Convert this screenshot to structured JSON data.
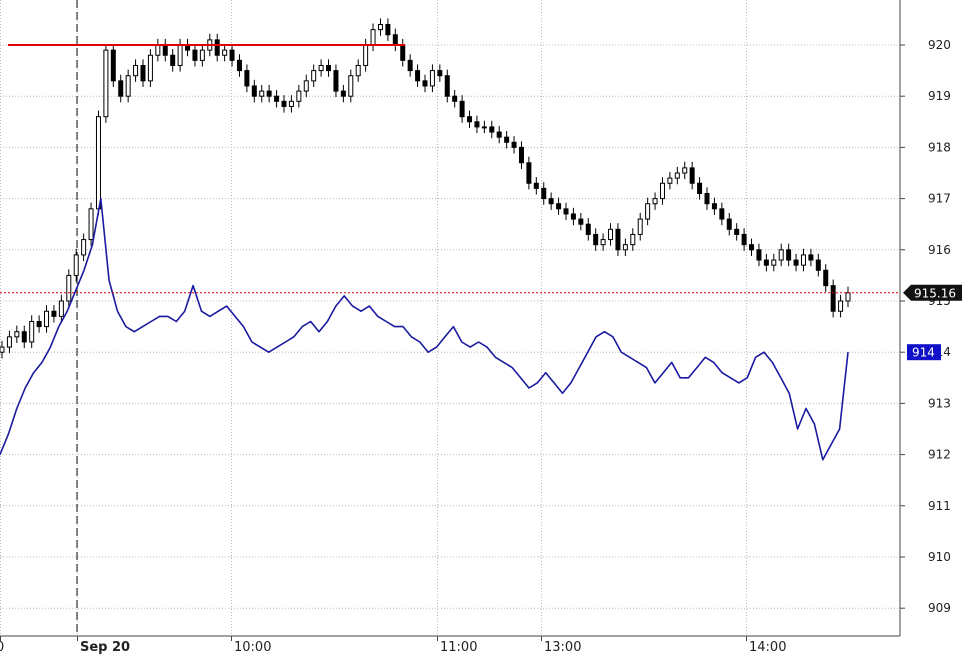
{
  "chart_data": {
    "type": "line",
    "y_axis": {
      "min": 908.6,
      "max": 920.8,
      "ticks": [
        909,
        910,
        911,
        912,
        913,
        914,
        915,
        916,
        917,
        918,
        919,
        920
      ],
      "tick_labels": [
        "909",
        "910",
        "911",
        "912",
        "913",
        "914",
        "915",
        "916",
        "917",
        "918",
        "919",
        "920"
      ],
      "grid": true
    },
    "x_axis": {
      "tick_labels": [
        "0",
        "Sep 20",
        "10:00",
        "11:00",
        "13:00",
        "14:00"
      ],
      "bold_labels": [
        "Sep 20"
      ],
      "session_break_label": "Sep 20",
      "grid": true
    },
    "series": [
      {
        "style": "candlestick",
        "color": "#000000",
        "values": [
          914.1,
          914.3,
          914.4,
          914.2,
          914.6,
          914.5,
          914.8,
          914.7,
          915.0,
          915.5,
          915.9,
          916.2,
          916.8,
          918.6,
          919.9,
          919.3,
          919.0,
          919.4,
          919.6,
          919.3,
          919.8,
          920.0,
          919.8,
          919.6,
          920.0,
          919.9,
          919.7,
          919.9,
          920.1,
          919.8,
          919.9,
          919.7,
          919.5,
          919.2,
          919.0,
          919.1,
          919.0,
          918.9,
          918.8,
          918.9,
          919.1,
          919.3,
          919.5,
          919.6,
          919.5,
          919.1,
          919.0,
          919.4,
          919.6,
          920.0,
          920.3,
          920.4,
          920.2,
          920.0,
          919.7,
          919.5,
          919.3,
          919.2,
          919.5,
          919.4,
          919.0,
          918.9,
          918.6,
          918.5,
          918.4,
          918.4,
          918.3,
          918.2,
          918.1,
          918.0,
          917.7,
          917.3,
          917.2,
          917.0,
          916.9,
          916.8,
          916.7,
          916.6,
          916.5,
          916.3,
          916.1,
          916.2,
          916.4,
          916.0,
          916.1,
          916.3,
          916.6,
          916.9,
          917.0,
          917.3,
          917.4,
          917.5,
          917.6,
          917.3,
          917.1,
          916.9,
          916.8,
          916.6,
          916.4,
          916.3,
          916.1,
          916.0,
          915.8,
          915.7,
          915.8,
          916.0,
          915.8,
          915.7,
          915.9,
          915.8,
          915.6,
          915.3,
          914.8,
          915.0,
          915.16
        ]
      },
      {
        "style": "line",
        "color": "#1a1aa0",
        "values": [
          912.0,
          912.4,
          912.9,
          913.3,
          913.6,
          913.8,
          914.1,
          914.5,
          914.8,
          915.2,
          915.6,
          916.1,
          917.0,
          915.4,
          914.8,
          914.5,
          914.4,
          914.5,
          914.6,
          914.7,
          914.7,
          914.6,
          914.8,
          915.3,
          914.8,
          914.7,
          914.8,
          914.9,
          914.7,
          914.5,
          914.2,
          914.1,
          914.0,
          914.1,
          914.2,
          914.3,
          914.5,
          914.6,
          914.4,
          914.6,
          914.9,
          915.1,
          914.9,
          914.8,
          914.9,
          914.7,
          914.6,
          914.5,
          914.5,
          914.3,
          914.2,
          914.0,
          914.1,
          914.3,
          914.5,
          914.2,
          914.1,
          914.2,
          914.1,
          913.9,
          913.8,
          913.7,
          913.5,
          913.3,
          913.4,
          913.6,
          913.4,
          913.2,
          913.4,
          913.7,
          914.0,
          914.3,
          914.4,
          914.3,
          914.0,
          913.9,
          913.8,
          913.7,
          913.4,
          913.6,
          913.8,
          913.5,
          913.5,
          913.7,
          913.9,
          913.8,
          913.6,
          913.5,
          913.4,
          913.5,
          913.9,
          914.0,
          913.8,
          913.5,
          913.2,
          912.5,
          912.9,
          912.6,
          911.9,
          912.2,
          912.5,
          914.0
        ]
      }
    ],
    "reference_lines": [
      {
        "kind": "horizontal-segment",
        "value": 920.0,
        "color": "#e00000",
        "style": "solid"
      },
      {
        "kind": "horizontal",
        "value": 915.16,
        "color": "#e00000",
        "style": "dotted"
      }
    ],
    "last_value_labels": [
      {
        "text": "915.16",
        "value": 915.16,
        "background": "#111111",
        "text_color": "#ffffff"
      },
      {
        "text": "914",
        "value": 914.0,
        "background": "#1010c8",
        "text_color": "#ffffff"
      }
    ],
    "colors": {
      "candles": "#000000",
      "line": "#1a1aa0",
      "resistance": "#e00000",
      "grid": "#b8b8b8",
      "session_break": "#111111"
    }
  }
}
